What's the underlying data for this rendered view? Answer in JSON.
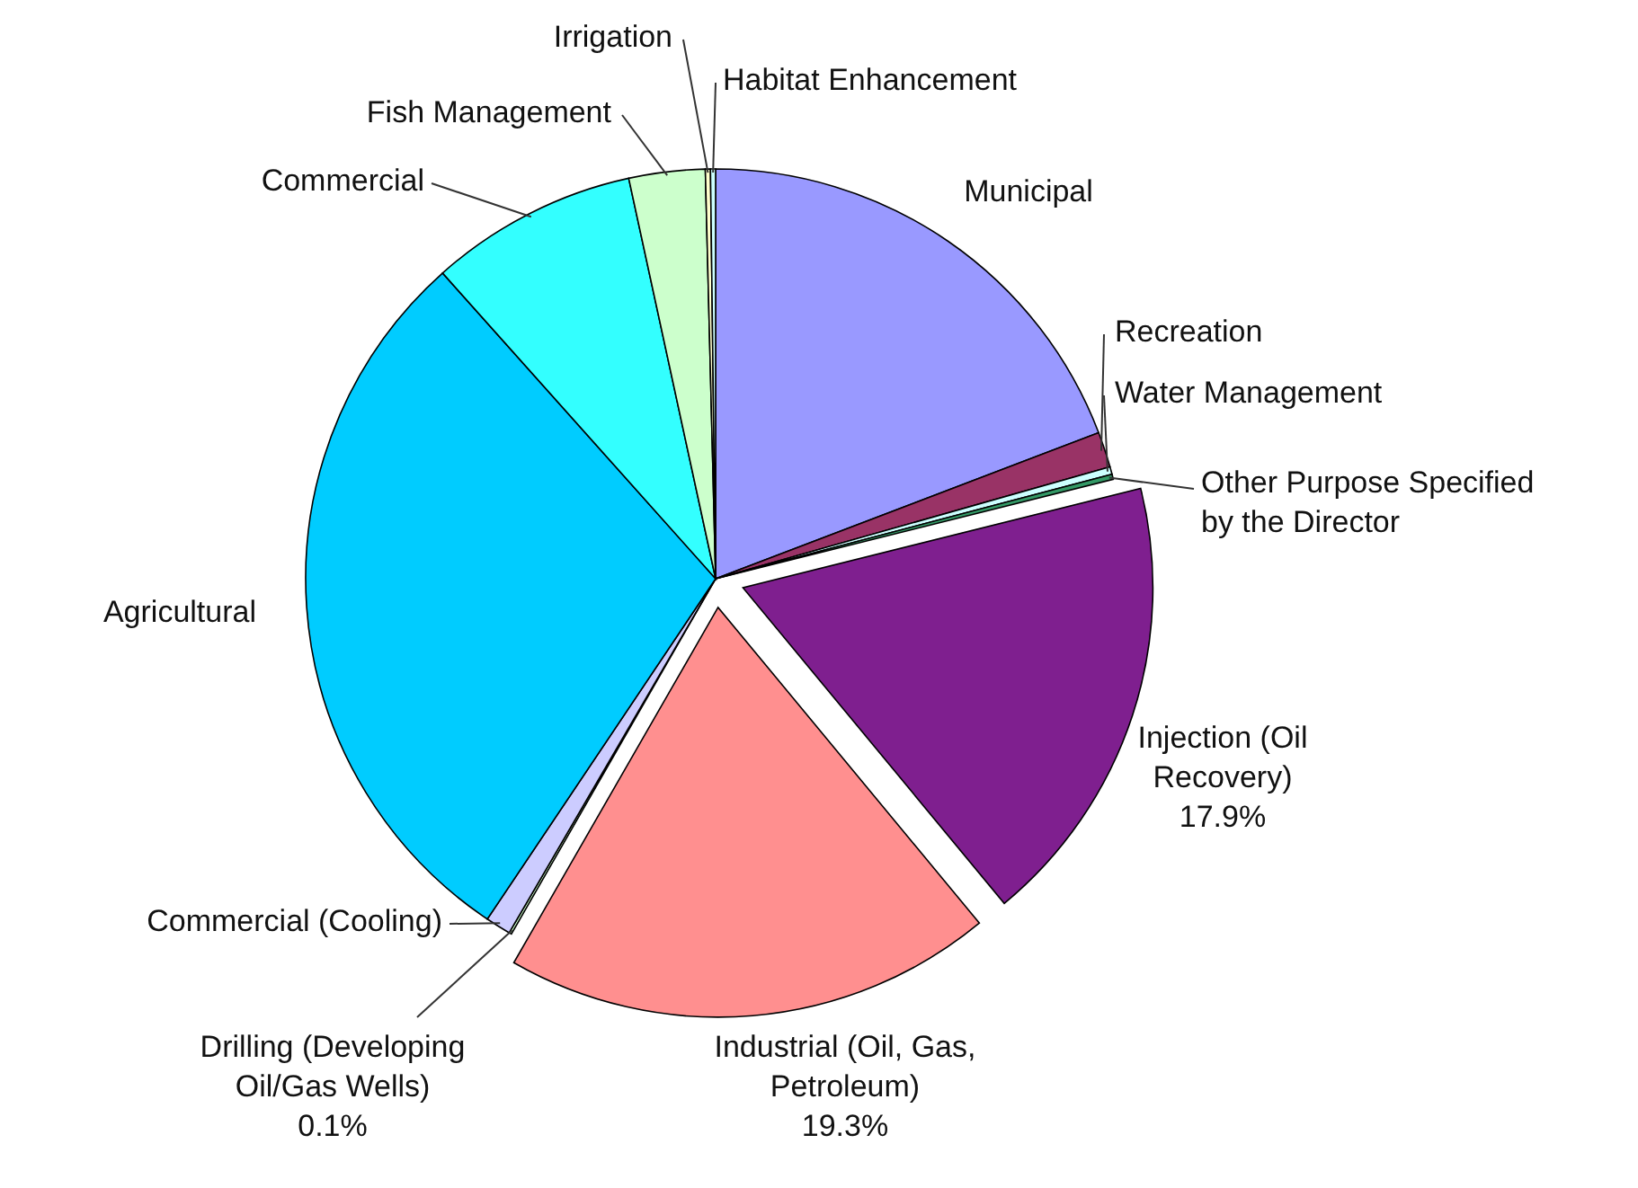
{
  "chart_data": {
    "type": "pie",
    "categories": [
      "Municipal",
      "Recreation",
      "Water Management",
      "Other Purpose Specified by the Director",
      "Injection (Oil Recovery)",
      "Industrial (Oil, Gas, Petroleum)",
      "Drilling (Developing Oil/Gas Wells)",
      "Commercial (Cooling)",
      "Agricultural",
      "Commercial",
      "Fish Management",
      "Irrigation",
      "Habitat Enhancement"
    ],
    "values": [
      19.2,
      1.4,
      0.3,
      0.2,
      17.9,
      19.3,
      0.1,
      1.0,
      29.0,
      8.2,
      3.0,
      0.2,
      0.2
    ],
    "value_labels": [
      null,
      null,
      null,
      null,
      "17.9%",
      "19.3%",
      "0.1%",
      null,
      null,
      null,
      null,
      null,
      null
    ],
    "colors": [
      "#9999ff",
      "#993366",
      "#ccffff",
      "#339966",
      "#7f1f8f",
      "#ff8f8f",
      "#ccffcc",
      "#ccccff",
      "#00ccff",
      "#33ffff",
      "#ccffcc",
      "#ffffcc",
      "#ccffff"
    ]
  }
}
